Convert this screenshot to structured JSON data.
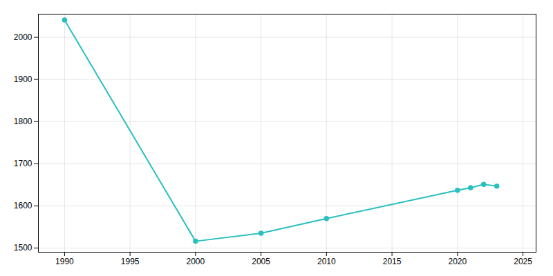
{
  "chart_data": {
    "type": "line",
    "x": [
      1990,
      2000,
      2005,
      2010,
      2020,
      2021,
      2022,
      2023
    ],
    "values": [
      2041,
      1516,
      1535,
      1570,
      1637,
      1643,
      1651,
      1647
    ],
    "color": "#2abfbf",
    "marker": "circle",
    "xlim": [
      1988,
      2026
    ],
    "ylim": [
      1490,
      2055
    ],
    "xticks": [
      1990,
      1995,
      2000,
      2005,
      2010,
      2015,
      2020,
      2025
    ],
    "yticks": [
      1500,
      1600,
      1700,
      1800,
      1900,
      2000
    ],
    "grid": true
  }
}
